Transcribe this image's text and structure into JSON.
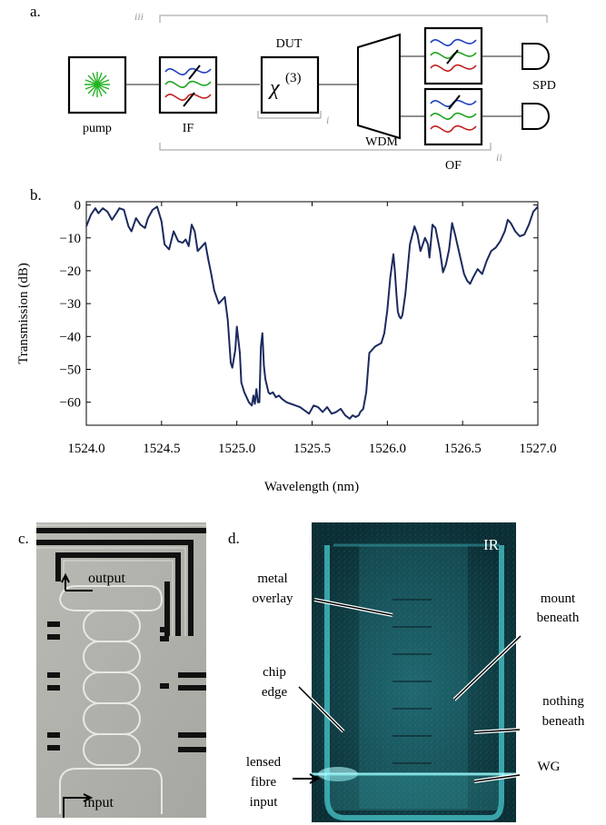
{
  "panels": {
    "a": {
      "label": "a.",
      "blocks": {
        "pump": "pump",
        "if": "IF",
        "dut_title": "DUT",
        "chi_base": "χ",
        "chi_exp": "(3)",
        "wdm": "WDM",
        "of": "OF",
        "spd": "SPD"
      },
      "brackets": {
        "i": "i",
        "ii": "ii",
        "iii": "iii"
      },
      "colors": {
        "blue": "#1f3fbf",
        "green": "#1fa31f",
        "red": "#c21f1f",
        "pump_green": "#22b422"
      }
    },
    "b": {
      "label": "b."
    },
    "c": {
      "label": "c.",
      "texts": {
        "output": "output",
        "input": "input"
      }
    },
    "d": {
      "label": "d.",
      "texts": {
        "ir": "IR",
        "metal1": "metal",
        "metal2": "overlay",
        "mount1": "mount",
        "mount2": "beneath",
        "chip1": "chip",
        "chip2": "edge",
        "nothing1": "nothing",
        "nothing2": "beneath",
        "lensed1": "lensed",
        "lensed2": "fibre",
        "lensed3": "input",
        "wg": "WG"
      }
    }
  },
  "chart_data": {
    "type": "line",
    "title": "",
    "xlabel": "Wavelength (nm)",
    "ylabel": "Transmission (dB)",
    "xlim": [
      1524.0,
      1527.0
    ],
    "ylim": [
      -67,
      1
    ],
    "xticks": [
      1524.0,
      1524.5,
      1525.0,
      1525.5,
      1526.0,
      1526.5,
      1527.0
    ],
    "xtick_labels": [
      "1524.0",
      "1524.5",
      "1525.0",
      "1525.5",
      "1526.0",
      "1526.5",
      "1527.0"
    ],
    "yticks": [
      0,
      -10,
      -20,
      -30,
      -40,
      -50,
      -60
    ],
    "ytick_labels": [
      "0",
      "−10",
      "−20",
      "−30",
      "−40",
      "−50",
      "−60"
    ],
    "grid": false,
    "line_color": "#1c2a5e",
    "series": [
      {
        "x": [
          1524.0,
          1524.03,
          1524.06,
          1524.08,
          1524.11,
          1524.14,
          1524.17,
          1524.2,
          1524.22,
          1524.25,
          1524.28,
          1524.3,
          1524.33,
          1524.36,
          1524.39,
          1524.41,
          1524.44,
          1524.47,
          1524.5,
          1524.52,
          1524.55,
          1524.58,
          1524.61,
          1524.64,
          1524.66,
          1524.68,
          1524.7,
          1524.72,
          1524.74,
          1524.77,
          1524.79,
          1524.81,
          1524.83,
          1524.85,
          1524.88,
          1524.9,
          1524.92,
          1524.94,
          1524.96,
          1524.97,
          1524.99,
          1525.0,
          1525.02,
          1525.03,
          1525.05,
          1525.06,
          1525.08,
          1525.1,
          1525.11,
          1525.12,
          1525.13,
          1525.14,
          1525.15,
          1525.16,
          1525.17,
          1525.18,
          1525.19,
          1525.2,
          1525.21,
          1525.22,
          1525.24,
          1525.26,
          1525.28,
          1525.3,
          1525.33,
          1525.36,
          1525.39,
          1525.42,
          1525.45,
          1525.48,
          1525.51,
          1525.54,
          1525.57,
          1525.6,
          1525.63,
          1525.66,
          1525.69,
          1525.72,
          1525.75,
          1525.77,
          1525.79,
          1525.81,
          1525.82,
          1525.84,
          1525.86,
          1525.88,
          1525.9,
          1525.92,
          1525.94,
          1525.96,
          1525.98,
          1526.0,
          1526.02,
          1526.04,
          1526.05,
          1526.06,
          1526.07,
          1526.08,
          1526.09,
          1526.1,
          1526.12,
          1526.15,
          1526.18,
          1526.2,
          1526.22,
          1526.25,
          1526.27,
          1526.28,
          1526.3,
          1526.32,
          1526.35,
          1526.37,
          1526.39,
          1526.41,
          1526.43,
          1526.45,
          1526.47,
          1526.49,
          1526.51,
          1526.53,
          1526.55,
          1526.57,
          1526.6,
          1526.63,
          1526.66,
          1526.69,
          1526.72,
          1526.75,
          1526.78,
          1526.8,
          1526.82,
          1526.85,
          1526.88,
          1526.91,
          1526.94,
          1526.97,
          1527.0
        ],
        "y": [
          -6.5,
          -3.0,
          -1.0,
          -2.5,
          -1.0,
          -2.0,
          -4.5,
          -2.5,
          -1.0,
          -1.5,
          -6.5,
          -8.0,
          -4.0,
          -6.0,
          -7.0,
          -4.0,
          -1.5,
          -0.5,
          -5.0,
          -12.0,
          -13.5,
          -8.0,
          -11.0,
          -11.5,
          -10.5,
          -12.5,
          -6.0,
          -8.0,
          -14.0,
          -12.5,
          -11.5,
          -16.5,
          -21.0,
          -26.0,
          -30.0,
          -29.0,
          -28.0,
          -35.0,
          -48.0,
          -49.5,
          -44.0,
          -37.0,
          -45.0,
          -54.0,
          -57.0,
          -58.0,
          -60.0,
          -61.0,
          -58.0,
          -60.5,
          -56.0,
          -60.0,
          -60.0,
          -43.0,
          -39.0,
          -49.0,
          -53.0,
          -55.0,
          -57.0,
          -57.5,
          -57.0,
          -58.5,
          -58.0,
          -59.0,
          -60.0,
          -60.5,
          -61.0,
          -61.5,
          -62.5,
          -63.5,
          -61.0,
          -61.5,
          -63.0,
          -61.5,
          -63.5,
          -63.0,
          -62.0,
          -64.0,
          -65.0,
          -64.0,
          -64.5,
          -64.0,
          -63.0,
          -62.0,
          -57.0,
          -45.0,
          -44.0,
          -43.0,
          -42.5,
          -42.0,
          -39.0,
          -32.0,
          -22.0,
          -15.0,
          -20.0,
          -27.0,
          -32.5,
          -34.0,
          -34.5,
          -33.5,
          -27.0,
          -12.0,
          -6.5,
          -9.0,
          -14.0,
          -10.0,
          -12.0,
          -16.0,
          -6.0,
          -7.0,
          -14.0,
          -20.5,
          -18.0,
          -13.5,
          -5.5,
          -9.0,
          -13.0,
          -17.0,
          -21.0,
          -23.0,
          -24.0,
          -22.0,
          -19.5,
          -21.0,
          -17.0,
          -14.0,
          -13.0,
          -11.0,
          -8.0,
          -4.5,
          -5.5,
          -8.0,
          -9.5,
          -9.0,
          -6.0,
          -2.0,
          -0.5
        ]
      }
    ]
  }
}
